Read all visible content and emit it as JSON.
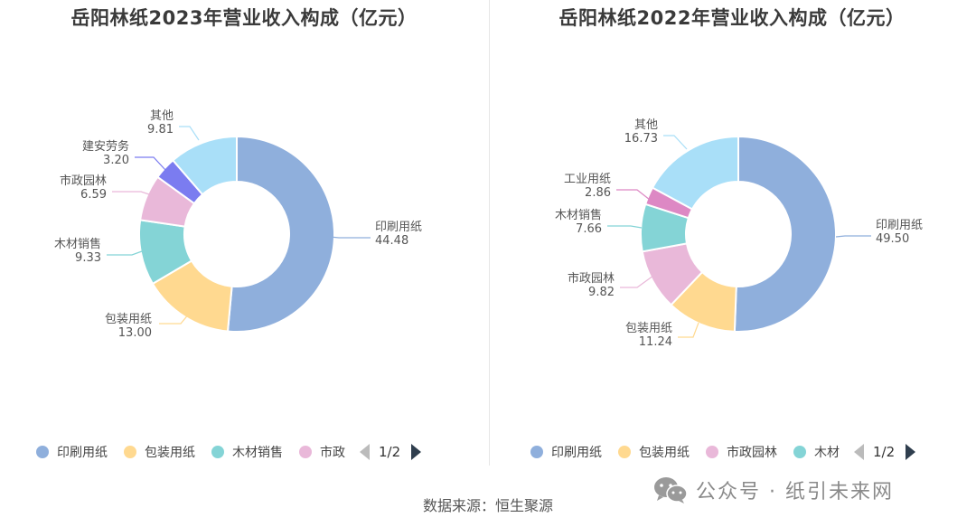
{
  "chart_data": [
    {
      "type": "pie",
      "title": "岳阳林纸2023年营业收入构成（亿元）",
      "slices": [
        {
          "label": "印刷用纸",
          "value": 44.48,
          "value_label": "44.48",
          "color": "#8fafdc"
        },
        {
          "label": "包装用纸",
          "value": 13.0,
          "value_label": "13.00",
          "color": "#ffd990"
        },
        {
          "label": "木材销售",
          "value": 9.33,
          "value_label": "9.33",
          "color": "#84d4d6"
        },
        {
          "label": "市政园林",
          "value": 6.59,
          "value_label": "6.59",
          "color": "#e9b8d9"
        },
        {
          "label": "建安劳务",
          "value": 3.2,
          "value_label": "3.20",
          "color": "#7b7cf0"
        },
        {
          "label": "其他",
          "value": 9.81,
          "value_label": "9.81",
          "color": "#a9dff8"
        }
      ],
      "legend": [
        "印刷用纸",
        "包装用纸",
        "木材销售",
        "市政"
      ],
      "legend_colors": [
        "#8fafdc",
        "#ffd990",
        "#84d4d6",
        "#e9b8d9"
      ],
      "pager": "1/2"
    },
    {
      "type": "pie",
      "title": "岳阳林纸2022年营业收入构成（亿元）",
      "slices": [
        {
          "label": "印刷用纸",
          "value": 49.5,
          "value_label": "49.50",
          "color": "#8fafdc"
        },
        {
          "label": "包装用纸",
          "value": 11.24,
          "value_label": "11.24",
          "color": "#ffd990"
        },
        {
          "label": "市政园林",
          "value": 9.82,
          "value_label": "9.82",
          "color": "#e9b8d9"
        },
        {
          "label": "木材销售",
          "value": 7.66,
          "value_label": "7.66",
          "color": "#84d4d6"
        },
        {
          "label": "工业用纸",
          "value": 2.86,
          "value_label": "2.86",
          "color": "#dd88c4"
        },
        {
          "label": "其他",
          "value": 16.73,
          "value_label": "16.73",
          "color": "#a9dff8"
        }
      ],
      "legend": [
        "印刷用纸",
        "包装用纸",
        "市政园林",
        "木材"
      ],
      "legend_colors": [
        "#8fafdc",
        "#ffd990",
        "#e9b8d9",
        "#84d4d6"
      ],
      "pager": "1/2"
    }
  ],
  "source": "数据来源：恒生聚源",
  "watermark": {
    "text": "公众号 · 纸引未来网",
    "icon": "wechat-icon"
  }
}
